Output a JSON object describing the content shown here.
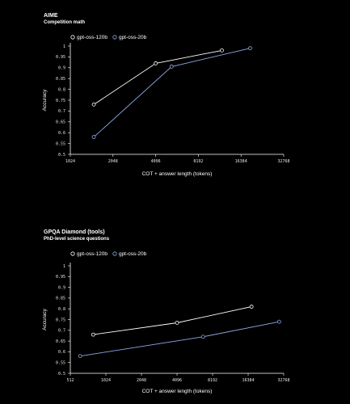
{
  "chart_data": [
    {
      "type": "line",
      "title": "AIME",
      "subtitle": "Competition math",
      "xlabel": "COT + answer length (tokens)",
      "ylabel": "Accuracy",
      "x_scale": "log2",
      "xlim": [
        1024,
        32768
      ],
      "ylim": [
        0.5,
        1.0
      ],
      "x_ticks": [
        "1024",
        "2048",
        "4096",
        "8192",
        "16384",
        "32768"
      ],
      "y_ticks": [
        "0.5",
        "0.55",
        "0.6",
        "0.65",
        "0.7",
        "0.75",
        "0.8",
        "0.85",
        "0.9",
        "0.95",
        "1"
      ],
      "legend_position": "top-left",
      "series": [
        {
          "name": "gpt-oss-120b",
          "color": "#ffffff",
          "x": [
            1500,
            4100,
            12000
          ],
          "y": [
            0.73,
            0.92,
            0.98
          ]
        },
        {
          "name": "gpt-oss-20b",
          "color": "#8fa8e8",
          "x": [
            1500,
            5300,
            19000
          ],
          "y": [
            0.58,
            0.905,
            0.99
          ]
        }
      ]
    },
    {
      "type": "line",
      "title": "GPQA Diamond (tools)",
      "subtitle": "PhD-level science questions",
      "xlabel": "COT + answer length (tokens)",
      "ylabel": "Accuracy",
      "x_scale": "log2",
      "xlim": [
        512,
        32768
      ],
      "ylim": [
        0.5,
        1.0
      ],
      "x_ticks": [
        "512",
        "1024",
        "2048",
        "4096",
        "8192",
        "16384",
        "32768"
      ],
      "y_ticks": [
        "0.5",
        "0.55",
        "0.6",
        "0.65",
        "0.7",
        "0.75",
        "0.8",
        "0.85",
        "0.9",
        "0.95",
        "1"
      ],
      "legend_position": "top-left",
      "series": [
        {
          "name": "gpt-oss-120b",
          "color": "#ffffff",
          "x": [
            800,
            4100,
            17500
          ],
          "y": [
            0.68,
            0.735,
            0.81
          ]
        },
        {
          "name": "gpt-oss-20b",
          "color": "#8fa8e8",
          "x": [
            620,
            6800,
            30000
          ],
          "y": [
            0.58,
            0.67,
            0.74
          ]
        }
      ]
    }
  ]
}
